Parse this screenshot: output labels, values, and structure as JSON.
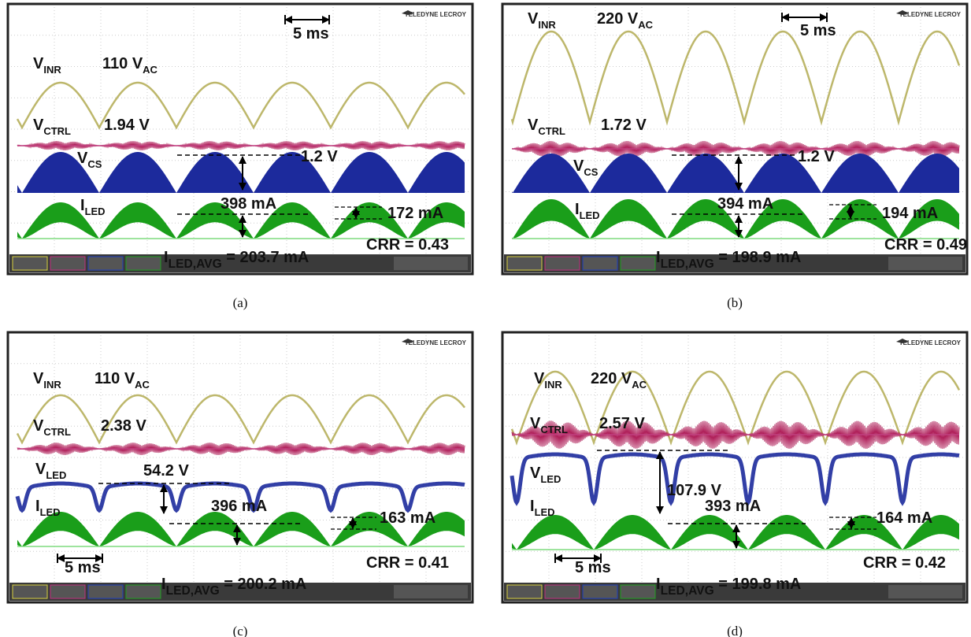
{
  "panels": [
    {
      "caption": "(a)",
      "brand": "TELEDYNE LECROY",
      "time_scale": "5 ms",
      "vinr": {
        "text": "V",
        "sub": "INR"
      },
      "vinr_value": {
        "text": "110 V",
        "sub": "AC"
      },
      "vctrl": {
        "text": "V",
        "sub": "CTRL"
      },
      "vctrl_value": {
        "text": "1.94 V"
      },
      "third": {
        "text": "V",
        "sub": "CS"
      },
      "third_value": {
        "text": "1.2 V"
      },
      "iled": {
        "text": "I",
        "sub": "LED"
      },
      "iled_value": {
        "text": "398 mA"
      },
      "ripple": {
        "text": "172 mA"
      },
      "crr": {
        "text": "CRR = 0.43"
      },
      "avg": {
        "text": "I",
        "sub": "LED,AVG",
        "after": " = 203.7 mA"
      }
    },
    {
      "caption": "(b)",
      "brand": "TELEDYNE LECROY",
      "time_scale": "5 ms",
      "vinr": {
        "text": "V",
        "sub": "INR"
      },
      "vinr_value": {
        "text": "220 V",
        "sub": "AC"
      },
      "vctrl": {
        "text": "V",
        "sub": "CTRL"
      },
      "vctrl_value": {
        "text": "1.72 V"
      },
      "third": {
        "text": "V",
        "sub": "CS"
      },
      "third_value": {
        "text": "1.2 V"
      },
      "iled": {
        "text": "I",
        "sub": "LED"
      },
      "iled_value": {
        "text": "394 mA"
      },
      "ripple": {
        "text": "194 mA"
      },
      "crr": {
        "text": "CRR = 0.49"
      },
      "avg": {
        "text": "I",
        "sub": "LED,AVG",
        "after": " = 198.9 mA"
      }
    },
    {
      "caption": "(c)",
      "brand": "TELEDYNE LECROY",
      "time_scale": "5 ms",
      "vinr": {
        "text": "V",
        "sub": "INR"
      },
      "vinr_value": {
        "text": "110 V",
        "sub": "AC"
      },
      "vctrl": {
        "text": "V",
        "sub": "CTRL"
      },
      "vctrl_value": {
        "text": "2.38 V"
      },
      "third": {
        "text": "V",
        "sub": "LED"
      },
      "third_value": {
        "text": "54.2 V"
      },
      "iled": {
        "text": "I",
        "sub": "LED"
      },
      "iled_value": {
        "text": "396 mA"
      },
      "ripple": {
        "text": "163 mA"
      },
      "crr": {
        "text": "CRR = 0.41"
      },
      "avg": {
        "text": "I",
        "sub": "LED,AVG",
        "after": " = 200.2 mA"
      }
    },
    {
      "caption": "(d)",
      "brand": "TELEDYNE LECROY",
      "time_scale": "5 ms",
      "vinr": {
        "text": "V",
        "sub": "INR"
      },
      "vinr_value": {
        "text": "220 V",
        "sub": "AC"
      },
      "vctrl": {
        "text": "V",
        "sub": "CTRL"
      },
      "vctrl_value": {
        "text": "2.57 V"
      },
      "third": {
        "text": "V",
        "sub": "LED"
      },
      "third_value": {
        "text": "107.9 V"
      },
      "iled": {
        "text": "I",
        "sub": "LED"
      },
      "iled_value": {
        "text": "393 mA"
      },
      "ripple": {
        "text": "164 mA"
      },
      "crr": {
        "text": "CRR = 0.42"
      },
      "avg": {
        "text": "I",
        "sub": "LED,AVG",
        "after": " = 199.8 mA"
      }
    }
  ]
}
